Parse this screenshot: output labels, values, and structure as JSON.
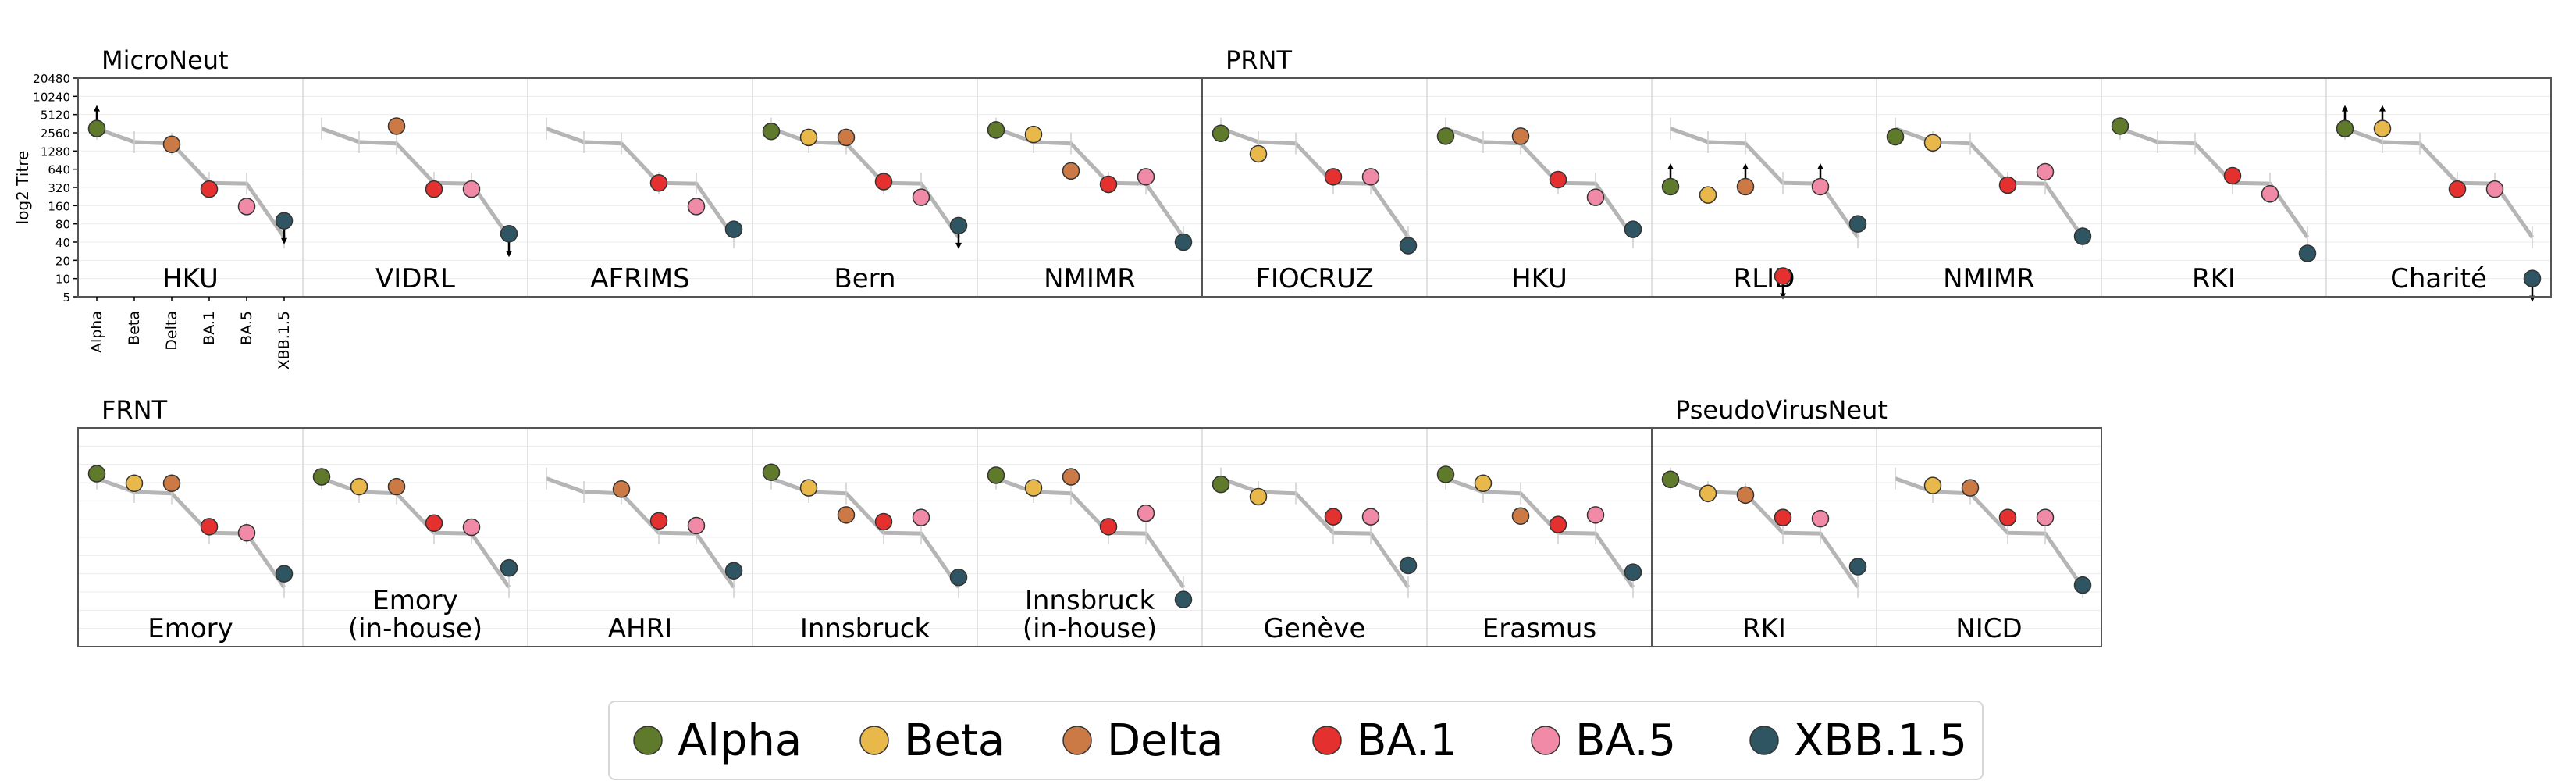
{
  "chart_data": {
    "type": "scatter",
    "ylabel": "log2 Titre",
    "y_scale": "log2",
    "ylim": [
      5,
      20480
    ],
    "y_ticks": [
      "5",
      "10",
      "20",
      "40",
      "80",
      "160",
      "320",
      "640",
      "1280",
      "2560",
      "5120",
      "10240",
      "20480"
    ],
    "categories": [
      "Alpha",
      "Beta",
      "Delta",
      "BA.1",
      "BA.5",
      "XBB.1.5"
    ],
    "colors": {
      "Alpha": "#5e7a2a",
      "Beta": "#e8b84b",
      "Delta": "#cc7a45",
      "BA.1": "#e53030",
      "BA.5": "#f08aa6",
      "XBB.1.5": "#2f5562"
    },
    "reference_line": [
      3000,
      1800,
      1700,
      380,
      370,
      48
    ],
    "legend": [
      "Alpha",
      "Beta",
      "Delta",
      "BA.1",
      "BA.5",
      "XBB.1.5"
    ],
    "legend_position": "bottom",
    "groups": [
      {
        "name": "MicroNeut",
        "row": 0,
        "panels": [
          {
            "label": "HKU",
            "points": [
              {
                "variant": "Alpha",
                "y": 3000,
                "arrow": "up"
              },
              {
                "variant": "Delta",
                "y": 1650
              },
              {
                "variant": "BA.1",
                "y": 300
              },
              {
                "variant": "BA.5",
                "y": 155
              },
              {
                "variant": "XBB.1.5",
                "y": 90,
                "arrow": "down"
              }
            ]
          },
          {
            "label": "VIDRL",
            "points": [
              {
                "variant": "Delta",
                "y": 3300
              },
              {
                "variant": "BA.1",
                "y": 300
              },
              {
                "variant": "BA.5",
                "y": 300
              },
              {
                "variant": "XBB.1.5",
                "y": 55,
                "arrow": "down"
              }
            ]
          },
          {
            "label": "AFRIMS",
            "points": [
              {
                "variant": "BA.1",
                "y": 380
              },
              {
                "variant": "BA.5",
                "y": 155
              },
              {
                "variant": "XBB.1.5",
                "y": 65
              }
            ]
          },
          {
            "label": "Bern",
            "points": [
              {
                "variant": "Alpha",
                "y": 2700
              },
              {
                "variant": "Beta",
                "y": 2150
              },
              {
                "variant": "Delta",
                "y": 2150
              },
              {
                "variant": "BA.1",
                "y": 400
              },
              {
                "variant": "BA.5",
                "y": 220
              },
              {
                "variant": "XBB.1.5",
                "y": 75,
                "arrow": "down"
              }
            ]
          },
          {
            "label": "NMIMR",
            "points": [
              {
                "variant": "Alpha",
                "y": 2850
              },
              {
                "variant": "Beta",
                "y": 2400
              },
              {
                "variant": "Delta",
                "y": 600
              },
              {
                "variant": "BA.1",
                "y": 360
              },
              {
                "variant": "BA.5",
                "y": 480
              },
              {
                "variant": "XBB.1.5",
                "y": 40
              }
            ]
          }
        ]
      },
      {
        "name": "PRNT",
        "row": 0,
        "panels": [
          {
            "label": "FIOCRUZ",
            "points": [
              {
                "variant": "Alpha",
                "y": 2500
              },
              {
                "variant": "Beta",
                "y": 1150
              },
              {
                "variant": "BA.1",
                "y": 480
              },
              {
                "variant": "BA.5",
                "y": 480
              },
              {
                "variant": "XBB.1.5",
                "y": 35
              }
            ]
          },
          {
            "label": "HKU",
            "points": [
              {
                "variant": "Alpha",
                "y": 2250
              },
              {
                "variant": "Delta",
                "y": 2250
              },
              {
                "variant": "BA.1",
                "y": 430
              },
              {
                "variant": "BA.5",
                "y": 220
              },
              {
                "variant": "XBB.1.5",
                "y": 65
              }
            ]
          },
          {
            "label": "RLID",
            "points": [
              {
                "variant": "Alpha",
                "y": 330,
                "arrow": "up"
              },
              {
                "variant": "Beta",
                "y": 240
              },
              {
                "variant": "Delta",
                "y": 330,
                "arrow": "up"
              },
              {
                "variant": "BA.1",
                "y": 11,
                "arrow": "down"
              },
              {
                "variant": "BA.5",
                "y": 330,
                "arrow": "up"
              },
              {
                "variant": "XBB.1.5",
                "y": 80
              }
            ]
          },
          {
            "label": "NMIMR",
            "points": [
              {
                "variant": "Alpha",
                "y": 2200
              },
              {
                "variant": "Beta",
                "y": 1750
              },
              {
                "variant": "BA.1",
                "y": 350
              },
              {
                "variant": "BA.5",
                "y": 580
              },
              {
                "variant": "XBB.1.5",
                "y": 50
              }
            ]
          },
          {
            "label": "RKI",
            "points": [
              {
                "variant": "Alpha",
                "y": 3300
              },
              {
                "variant": "BA.1",
                "y": 500
              },
              {
                "variant": "BA.5",
                "y": 250
              },
              {
                "variant": "XBB.1.5",
                "y": 26
              }
            ]
          },
          {
            "label": "Charité",
            "points": [
              {
                "variant": "Alpha",
                "y": 3000,
                "arrow": "up"
              },
              {
                "variant": "Beta",
                "y": 3000,
                "arrow": "up"
              },
              {
                "variant": "BA.1",
                "y": 300
              },
              {
                "variant": "BA.5",
                "y": 300
              },
              {
                "variant": "XBB.1.5",
                "y": 10,
                "arrow": "down"
              }
            ]
          }
        ]
      },
      {
        "name": "FRNT",
        "row": 1,
        "panels": [
          {
            "label": "Emory",
            "points": [
              {
                "variant": "Alpha",
                "y": 3600
              },
              {
                "variant": "Beta",
                "y": 2500
              },
              {
                "variant": "Delta",
                "y": 2500
              },
              {
                "variant": "BA.1",
                "y": 480
              },
              {
                "variant": "BA.5",
                "y": 380
              },
              {
                "variant": "XBB.1.5",
                "y": 80
              }
            ]
          },
          {
            "label": "Emory\n(in-house)",
            "points": [
              {
                "variant": "Alpha",
                "y": 3200
              },
              {
                "variant": "Beta",
                "y": 2200
              },
              {
                "variant": "Delta",
                "y": 2200
              },
              {
                "variant": "BA.1",
                "y": 550
              },
              {
                "variant": "BA.5",
                "y": 470
              },
              {
                "variant": "XBB.1.5",
                "y": 100
              }
            ]
          },
          {
            "label": "AHRI",
            "points": [
              {
                "variant": "Delta",
                "y": 2000
              },
              {
                "variant": "BA.1",
                "y": 600
              },
              {
                "variant": "BA.5",
                "y": 500
              },
              {
                "variant": "XBB.1.5",
                "y": 90
              }
            ]
          },
          {
            "label": "Innsbruck",
            "points": [
              {
                "variant": "Alpha",
                "y": 3800
              },
              {
                "variant": "Beta",
                "y": 2100
              },
              {
                "variant": "Delta",
                "y": 750
              },
              {
                "variant": "BA.1",
                "y": 580
              },
              {
                "variant": "BA.5",
                "y": 680
              },
              {
                "variant": "XBB.1.5",
                "y": 70
              }
            ]
          },
          {
            "label": "Innsbruck\n(in-house)",
            "points": [
              {
                "variant": "Alpha",
                "y": 3400
              },
              {
                "variant": "Beta",
                "y": 2100
              },
              {
                "variant": "Delta",
                "y": 3200
              },
              {
                "variant": "BA.1",
                "y": 480
              },
              {
                "variant": "BA.5",
                "y": 800
              },
              {
                "variant": "XBB.1.5",
                "y": 30
              }
            ]
          },
          {
            "label": "Genève",
            "points": [
              {
                "variant": "Alpha",
                "y": 2400
              },
              {
                "variant": "Beta",
                "y": 1500
              },
              {
                "variant": "BA.1",
                "y": 700
              },
              {
                "variant": "BA.5",
                "y": 700
              },
              {
                "variant": "XBB.1.5",
                "y": 110
              }
            ]
          },
          {
            "label": "Erasmus",
            "points": [
              {
                "variant": "Alpha",
                "y": 3500
              },
              {
                "variant": "Beta",
                "y": 2500
              },
              {
                "variant": "Delta",
                "y": 720
              },
              {
                "variant": "BA.1",
                "y": 520
              },
              {
                "variant": "BA.5",
                "y": 750
              },
              {
                "variant": "XBB.1.5",
                "y": 85
              }
            ]
          }
        ]
      },
      {
        "name": "PseudoVirusNeut",
        "row": 1,
        "panels": [
          {
            "label": "RKI",
            "points": [
              {
                "variant": "Alpha",
                "y": 2900
              },
              {
                "variant": "Beta",
                "y": 1700
              },
              {
                "variant": "Delta",
                "y": 1600
              },
              {
                "variant": "BA.1",
                "y": 680
              },
              {
                "variant": "BA.5",
                "y": 650
              },
              {
                "variant": "XBB.1.5",
                "y": 105
              }
            ]
          },
          {
            "label": "NICD",
            "points": [
              {
                "variant": "Beta",
                "y": 2300
              },
              {
                "variant": "Delta",
                "y": 2100
              },
              {
                "variant": "BA.1",
                "y": 680
              },
              {
                "variant": "BA.5",
                "y": 680
              },
              {
                "variant": "XBB.1.5",
                "y": 52
              }
            ]
          }
        ]
      }
    ]
  }
}
